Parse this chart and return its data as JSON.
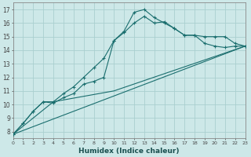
{
  "xlabel": "Humidex (Indice chaleur)",
  "xlim": [
    0,
    23
  ],
  "ylim": [
    7.5,
    17.5
  ],
  "xticks": [
    0,
    1,
    2,
    3,
    4,
    5,
    6,
    7,
    8,
    9,
    10,
    11,
    12,
    13,
    14,
    15,
    16,
    17,
    18,
    19,
    20,
    21,
    22,
    23
  ],
  "yticks": [
    8,
    9,
    10,
    11,
    12,
    13,
    14,
    15,
    16,
    17
  ],
  "bg_color": "#cde8e8",
  "grid_color": "#aacfcf",
  "line_color": "#1a6e6e",
  "curve1_x": [
    0,
    1,
    2,
    3,
    4,
    5,
    6,
    7,
    8,
    9,
    10,
    11,
    12,
    13,
    14,
    15,
    16,
    17,
    18,
    19,
    20,
    21,
    22,
    23
  ],
  "curve1_y": [
    7.8,
    8.6,
    9.5,
    10.2,
    10.1,
    10.5,
    10.8,
    11.5,
    11.7,
    12.0,
    14.7,
    15.3,
    16.0,
    16.5,
    16.0,
    16.1,
    15.6,
    15.1,
    15.1,
    15.0,
    15.0,
    15.0,
    14.5,
    14.3
  ],
  "curve2_x": [
    0,
    1,
    2,
    3,
    4,
    5,
    6,
    7,
    8,
    9,
    10,
    11,
    12,
    13,
    14,
    15,
    16,
    17,
    18,
    19,
    20,
    21,
    22,
    23
  ],
  "curve2_y": [
    7.8,
    8.6,
    9.5,
    10.2,
    10.2,
    10.8,
    11.3,
    12.0,
    12.7,
    13.4,
    14.7,
    15.4,
    16.8,
    17.0,
    16.4,
    16.0,
    15.6,
    15.1,
    15.1,
    14.5,
    14.3,
    14.2,
    14.3,
    14.3
  ],
  "line3_x": [
    0,
    23
  ],
  "line3_y": [
    7.8,
    14.3
  ],
  "line4_x": [
    0,
    4,
    10,
    23
  ],
  "line4_y": [
    7.8,
    10.2,
    11.0,
    14.3
  ]
}
